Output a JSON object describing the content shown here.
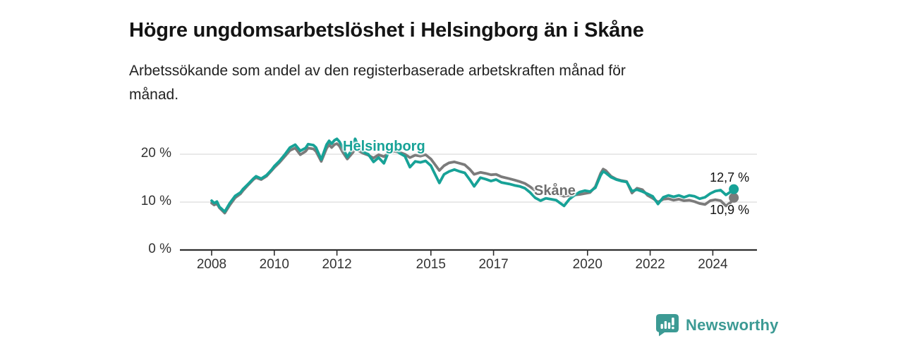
{
  "header": {
    "title": "Högre ungdomsarbetslöshet i Helsingborg än i Skåne",
    "subtitle_lines": [
      "Arbetssökande som andel av den registerbaserade arbetskraften månad för",
      "månad."
    ]
  },
  "chart_data": {
    "type": "line",
    "unit": "%",
    "grid": "horizontal",
    "legend_position": "inline-labels",
    "x_axis": {
      "ticks": [
        2008,
        2010,
        2012,
        2015,
        2017,
        2020,
        2022,
        2024
      ],
      "range": [
        2007.0,
        2025.4
      ]
    },
    "y_axis": {
      "range": [
        0,
        23.5
      ],
      "ticks": [
        {
          "value": 0,
          "label": "0 %"
        },
        {
          "value": 10,
          "label": "10 %"
        },
        {
          "value": 20,
          "label": "20 %"
        }
      ]
    },
    "colors": {
      "axis": "#2e2e2e",
      "grid": "#dcdcdc",
      "tick_text": "#333333"
    },
    "series": [
      {
        "name": "Skåne",
        "color": "#7b7b7b",
        "label_color": "#6e6e6e",
        "end_value_label": "10,9 %",
        "points": [
          [
            2008.0,
            9.8
          ],
          [
            2008.08,
            9.4
          ],
          [
            2008.17,
            9.7
          ],
          [
            2008.25,
            8.8
          ],
          [
            2008.42,
            7.7
          ],
          [
            2008.58,
            9.4
          ],
          [
            2008.75,
            10.9
          ],
          [
            2008.92,
            11.7
          ],
          [
            2009.0,
            12.4
          ],
          [
            2009.17,
            13.6
          ],
          [
            2009.33,
            14.7
          ],
          [
            2009.42,
            15.1
          ],
          [
            2009.58,
            14.7
          ],
          [
            2009.75,
            15.4
          ],
          [
            2009.92,
            16.6
          ],
          [
            2010.0,
            17.2
          ],
          [
            2010.17,
            18.3
          ],
          [
            2010.33,
            19.5
          ],
          [
            2010.5,
            20.8
          ],
          [
            2010.67,
            21.3
          ],
          [
            2010.83,
            19.9
          ],
          [
            2011.0,
            20.6
          ],
          [
            2011.08,
            21.3
          ],
          [
            2011.25,
            21.1
          ],
          [
            2011.33,
            20.6
          ],
          [
            2011.5,
            18.5
          ],
          [
            2011.67,
            21.2
          ],
          [
            2011.75,
            22.0
          ],
          [
            2011.83,
            21.4
          ],
          [
            2011.92,
            22.0
          ],
          [
            2012.0,
            22.2
          ],
          [
            2012.08,
            21.7
          ],
          [
            2012.17,
            20.6
          ],
          [
            2012.33,
            19.0
          ],
          [
            2012.5,
            20.3
          ],
          [
            2012.58,
            21.0
          ],
          [
            2012.67,
            20.8
          ],
          [
            2012.83,
            20.2
          ],
          [
            2013.0,
            19.8
          ],
          [
            2013.17,
            19.2
          ],
          [
            2013.33,
            19.9
          ],
          [
            2013.5,
            19.5
          ],
          [
            2013.67,
            20.3
          ],
          [
            2013.83,
            20.6
          ],
          [
            2014.0,
            20.4
          ],
          [
            2014.17,
            20.0
          ],
          [
            2014.33,
            19.3
          ],
          [
            2014.5,
            19.8
          ],
          [
            2014.67,
            19.6
          ],
          [
            2014.83,
            19.9
          ],
          [
            2015.0,
            19.0
          ],
          [
            2015.08,
            18.3
          ],
          [
            2015.27,
            16.6
          ],
          [
            2015.42,
            17.6
          ],
          [
            2015.58,
            18.2
          ],
          [
            2015.75,
            18.4
          ],
          [
            2015.92,
            18.1
          ],
          [
            2016.08,
            17.8
          ],
          [
            2016.25,
            16.8
          ],
          [
            2016.38,
            15.8
          ],
          [
            2016.58,
            16.2
          ],
          [
            2016.75,
            16.0
          ],
          [
            2016.92,
            15.7
          ],
          [
            2017.08,
            15.8
          ],
          [
            2017.25,
            15.3
          ],
          [
            2017.5,
            14.9
          ],
          [
            2017.67,
            14.6
          ],
          [
            2017.83,
            14.3
          ],
          [
            2018.0,
            13.9
          ],
          [
            2018.17,
            13.2
          ],
          [
            2018.33,
            12.4
          ],
          [
            2018.5,
            12.0
          ],
          [
            2018.67,
            12.2
          ],
          [
            2018.83,
            12.0
          ],
          [
            2019.0,
            11.8
          ],
          [
            2019.25,
            11.2
          ],
          [
            2019.42,
            11.4
          ],
          [
            2019.58,
            11.5
          ],
          [
            2019.75,
            11.6
          ],
          [
            2019.92,
            11.8
          ],
          [
            2020.08,
            12.0
          ],
          [
            2020.25,
            13.2
          ],
          [
            2020.42,
            16.0
          ],
          [
            2020.5,
            16.9
          ],
          [
            2020.58,
            16.6
          ],
          [
            2020.75,
            15.4
          ],
          [
            2020.92,
            14.8
          ],
          [
            2021.08,
            14.5
          ],
          [
            2021.25,
            14.3
          ],
          [
            2021.42,
            11.9
          ],
          [
            2021.58,
            12.9
          ],
          [
            2021.75,
            12.6
          ],
          [
            2021.92,
            11.4
          ],
          [
            2022.08,
            10.8
          ],
          [
            2022.25,
            10.0
          ],
          [
            2022.42,
            10.6
          ],
          [
            2022.58,
            10.7
          ],
          [
            2022.75,
            10.4
          ],
          [
            2022.92,
            10.6
          ],
          [
            2023.08,
            10.3
          ],
          [
            2023.25,
            10.4
          ],
          [
            2023.42,
            10.1
          ],
          [
            2023.58,
            9.7
          ],
          [
            2023.75,
            9.5
          ],
          [
            2023.92,
            10.3
          ],
          [
            2024.08,
            10.5
          ],
          [
            2024.25,
            10.3
          ],
          [
            2024.42,
            9.2
          ],
          [
            2024.58,
            10.0
          ],
          [
            2024.67,
            10.9
          ]
        ]
      },
      {
        "name": "Helsingborg",
        "color": "#17a297",
        "label_color": "#17a297",
        "end_value_label": "12,7 %",
        "points": [
          [
            2008.0,
            10.3
          ],
          [
            2008.08,
            9.8
          ],
          [
            2008.17,
            10.1
          ],
          [
            2008.25,
            9.0
          ],
          [
            2008.42,
            8.0
          ],
          [
            2008.58,
            9.8
          ],
          [
            2008.75,
            11.3
          ],
          [
            2008.92,
            12.0
          ],
          [
            2009.0,
            12.7
          ],
          [
            2009.17,
            13.8
          ],
          [
            2009.33,
            14.9
          ],
          [
            2009.42,
            15.4
          ],
          [
            2009.58,
            14.9
          ],
          [
            2009.75,
            15.6
          ],
          [
            2009.92,
            16.8
          ],
          [
            2010.0,
            17.5
          ],
          [
            2010.17,
            18.6
          ],
          [
            2010.33,
            19.9
          ],
          [
            2010.5,
            21.4
          ],
          [
            2010.67,
            22.0
          ],
          [
            2010.83,
            20.7
          ],
          [
            2011.0,
            21.3
          ],
          [
            2011.08,
            22.1
          ],
          [
            2011.25,
            21.9
          ],
          [
            2011.33,
            21.4
          ],
          [
            2011.5,
            18.9
          ],
          [
            2011.67,
            22.0
          ],
          [
            2011.75,
            22.8
          ],
          [
            2011.83,
            22.2
          ],
          [
            2011.92,
            22.9
          ],
          [
            2012.0,
            23.2
          ],
          [
            2012.08,
            22.6
          ],
          [
            2012.17,
            21.6
          ],
          [
            2012.33,
            19.4
          ],
          [
            2012.5,
            21.2
          ],
          [
            2012.58,
            23.2
          ],
          [
            2012.67,
            21.9
          ],
          [
            2012.83,
            20.5
          ],
          [
            2013.0,
            20.0
          ],
          [
            2013.17,
            18.4
          ],
          [
            2013.33,
            19.3
          ],
          [
            2013.5,
            18.1
          ],
          [
            2013.67,
            20.8
          ],
          [
            2013.83,
            21.2
          ],
          [
            2014.0,
            20.2
          ],
          [
            2014.17,
            19.6
          ],
          [
            2014.33,
            17.3
          ],
          [
            2014.5,
            18.5
          ],
          [
            2014.67,
            18.3
          ],
          [
            2014.83,
            18.6
          ],
          [
            2015.0,
            17.6
          ],
          [
            2015.08,
            16.5
          ],
          [
            2015.27,
            14.0
          ],
          [
            2015.42,
            15.8
          ],
          [
            2015.58,
            16.4
          ],
          [
            2015.75,
            16.8
          ],
          [
            2015.92,
            16.4
          ],
          [
            2016.08,
            16.1
          ],
          [
            2016.25,
            14.6
          ],
          [
            2016.38,
            13.3
          ],
          [
            2016.58,
            15.1
          ],
          [
            2016.75,
            14.8
          ],
          [
            2016.92,
            14.4
          ],
          [
            2017.08,
            14.7
          ],
          [
            2017.25,
            14.1
          ],
          [
            2017.5,
            13.8
          ],
          [
            2017.67,
            13.5
          ],
          [
            2017.83,
            13.3
          ],
          [
            2018.0,
            12.9
          ],
          [
            2018.17,
            12.0
          ],
          [
            2018.33,
            10.9
          ],
          [
            2018.5,
            10.3
          ],
          [
            2018.67,
            10.8
          ],
          [
            2018.83,
            10.6
          ],
          [
            2019.0,
            10.4
          ],
          [
            2019.25,
            9.2
          ],
          [
            2019.42,
            10.6
          ],
          [
            2019.58,
            11.4
          ],
          [
            2019.75,
            12.1
          ],
          [
            2019.92,
            12.4
          ],
          [
            2020.08,
            12.2
          ],
          [
            2020.25,
            13.0
          ],
          [
            2020.42,
            15.6
          ],
          [
            2020.5,
            16.4
          ],
          [
            2020.58,
            16.1
          ],
          [
            2020.75,
            15.2
          ],
          [
            2020.92,
            14.7
          ],
          [
            2021.08,
            14.4
          ],
          [
            2021.25,
            14.2
          ],
          [
            2021.42,
            12.3
          ],
          [
            2021.58,
            12.6
          ],
          [
            2021.75,
            12.2
          ],
          [
            2021.92,
            11.7
          ],
          [
            2022.08,
            11.2
          ],
          [
            2022.25,
            9.6
          ],
          [
            2022.42,
            11.0
          ],
          [
            2022.58,
            11.4
          ],
          [
            2022.75,
            11.1
          ],
          [
            2022.92,
            11.4
          ],
          [
            2023.08,
            11.0
          ],
          [
            2023.25,
            11.4
          ],
          [
            2023.42,
            11.2
          ],
          [
            2023.58,
            10.7
          ],
          [
            2023.75,
            11.0
          ],
          [
            2023.92,
            11.8
          ],
          [
            2024.08,
            12.3
          ],
          [
            2024.25,
            12.5
          ],
          [
            2024.42,
            11.5
          ],
          [
            2024.58,
            12.2
          ],
          [
            2024.67,
            12.7
          ]
        ]
      }
    ]
  },
  "footer": {
    "brand": "Newsworthy",
    "brand_color": "#3c9a94"
  }
}
